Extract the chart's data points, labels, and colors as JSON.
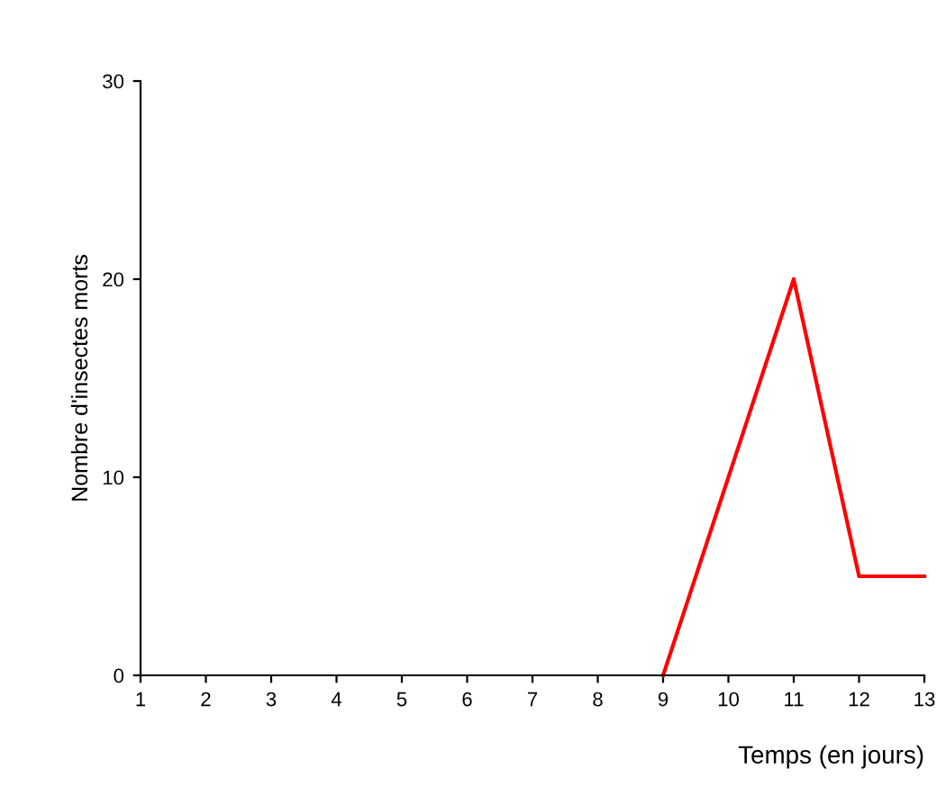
{
  "chart_data": {
    "type": "line",
    "xlabel": "Temps (en jours)",
    "ylabel": "Nombre d'insectes morts",
    "xlim": [
      1,
      13
    ],
    "xticks": [
      1,
      2,
      3,
      4,
      5,
      6,
      7,
      8,
      9,
      10,
      11,
      12,
      13
    ],
    "ylim": [
      0,
      30
    ],
    "yticks": [
      0,
      10,
      20,
      30
    ],
    "series": [
      {
        "color": "#ff0000",
        "x": [
          9,
          10,
          11,
          12,
          13
        ],
        "values": [
          0,
          10,
          20,
          5,
          5
        ]
      }
    ],
    "grid": false,
    "legend": false,
    "marker": "none",
    "line_style": "solid"
  }
}
